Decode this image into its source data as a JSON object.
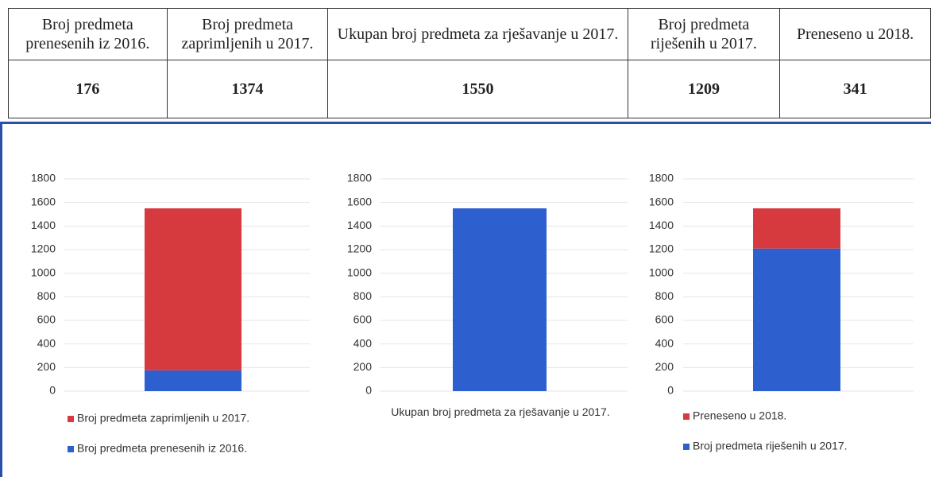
{
  "table": {
    "headers": [
      "Broj predmeta prenesenih iz 2016.",
      "Broj predmeta zaprimljenih u 2017.",
      "Ukupan broj predmeta za rješavanje u 2017.",
      "Broj predmeta riješenih u 2017.",
      "Preneseno u 2018."
    ],
    "values": [
      176,
      1374,
      1550,
      1209,
      341
    ]
  },
  "chart_data": [
    {
      "type": "stacked-bar",
      "categories": [
        null
      ],
      "ylim": [
        0,
        1800
      ],
      "yticks": [
        0,
        200,
        400,
        600,
        800,
        1000,
        1200,
        1400,
        1600,
        1800
      ],
      "grid": true,
      "series": [
        {
          "name": "Broj predmeta prenesenih iz 2016.",
          "color": "#2e5fce",
          "values": [
            176
          ]
        },
        {
          "name": "Broj predmeta zaprimljenih u 2017.",
          "color": "#d63a3e",
          "values": [
            1374
          ]
        }
      ]
    },
    {
      "type": "bar",
      "categories": [
        "Ukupan broj predmeta za rješavanje u 2017."
      ],
      "ylim": [
        0,
        1800
      ],
      "yticks": [
        0,
        200,
        400,
        600,
        800,
        1000,
        1200,
        1400,
        1600,
        1800
      ],
      "grid": true,
      "series": [
        {
          "name": "Ukupan broj predmeta za rješavanje u 2017.",
          "color": "#2e5fce",
          "values": [
            1550
          ]
        }
      ]
    },
    {
      "type": "stacked-bar",
      "categories": [
        null
      ],
      "ylim": [
        0,
        1800
      ],
      "yticks": [
        0,
        200,
        400,
        600,
        800,
        1000,
        1200,
        1400,
        1600,
        1800
      ],
      "grid": true,
      "series": [
        {
          "name": "Broj predmeta riješenih u 2017.",
          "color": "#2e5fce",
          "values": [
            1209
          ]
        },
        {
          "name": "Preneseno u 2018.",
          "color": "#d63a3e",
          "values": [
            341
          ]
        }
      ]
    }
  ]
}
